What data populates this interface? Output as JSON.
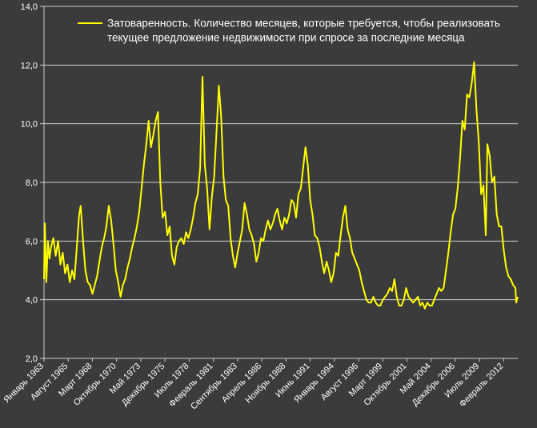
{
  "colors": {
    "background": "#3b3b3b",
    "line": "#ffff00",
    "grid": "#cfcfcf",
    "text": "#ffffff"
  },
  "chart_data": {
    "type": "line",
    "title": "",
    "xlabel": "",
    "ylabel": "",
    "ylim": [
      2,
      14
    ],
    "y_ticks": [
      "2,0",
      "4,0",
      "6,0",
      "8,0",
      "10,0",
      "12,0",
      "14,0"
    ],
    "x_range": [
      "1963-01",
      "2013-08"
    ],
    "x_tick_labels": [
      {
        "label": "Январь 1963",
        "date": "1963-01"
      },
      {
        "label": "Август 1965",
        "date": "1965-08"
      },
      {
        "label": "Март 1968",
        "date": "1968-03"
      },
      {
        "label": "Октябрь 1970",
        "date": "1970-10"
      },
      {
        "label": "Май 1973",
        "date": "1973-05"
      },
      {
        "label": "Декабрь 1975",
        "date": "1975-12"
      },
      {
        "label": "Июль 1978",
        "date": "1978-07"
      },
      {
        "label": "Февраль 1981",
        "date": "1981-02"
      },
      {
        "label": "Сентябрь 1983",
        "date": "1983-09"
      },
      {
        "label": "Апрель 1986",
        "date": "1986-04"
      },
      {
        "label": "Ноябрь 1988",
        "date": "1988-11"
      },
      {
        "label": "Июнь 1991",
        "date": "1991-06"
      },
      {
        "label": "Январь 1994",
        "date": "1994-01"
      },
      {
        "label": "Август 1996",
        "date": "1996-08"
      },
      {
        "label": "Март 1999",
        "date": "1999-03"
      },
      {
        "label": "Октябрь 2001",
        "date": "2001-10"
      },
      {
        "label": "Май 2004",
        "date": "2004-05"
      },
      {
        "label": "Декабрь 2006",
        "date": "2006-12"
      },
      {
        "label": "Июль 2009",
        "date": "2009-07"
      },
      {
        "label": "Февраль 2012",
        "date": "2012-02"
      }
    ],
    "grid": true,
    "legend": {
      "position": "top-right",
      "line1": "Затоваренность. Количество месяцев, которые требуется, чтобы реализовать",
      "line2": "текущее предложение недвижимости при спросе за последние месяца"
    },
    "series": [
      {
        "name": "Затоваренность. Количество месяцев, которые требуется, чтобы реализовать текущее предложение недвижимости при спросе за последние месяца",
        "points": [
          [
            "1963-01",
            4.7
          ],
          [
            "1963-02",
            6.6
          ],
          [
            "1963-04",
            4.6
          ],
          [
            "1963-06",
            6.0
          ],
          [
            "1963-08",
            5.4
          ],
          [
            "1963-10",
            5.8
          ],
          [
            "1964-01",
            6.1
          ],
          [
            "1964-04",
            5.5
          ],
          [
            "1964-07",
            6.0
          ],
          [
            "1964-10",
            5.2
          ],
          [
            "1965-01",
            5.6
          ],
          [
            "1965-04",
            4.9
          ],
          [
            "1965-07",
            5.2
          ],
          [
            "1965-10",
            4.6
          ],
          [
            "1966-01",
            5.0
          ],
          [
            "1966-04",
            4.7
          ],
          [
            "1966-07",
            5.8
          ],
          [
            "1966-10",
            6.9
          ],
          [
            "1966-12",
            7.2
          ],
          [
            "1967-03",
            6.0
          ],
          [
            "1967-06",
            5.0
          ],
          [
            "1967-09",
            4.6
          ],
          [
            "1967-12",
            4.5
          ],
          [
            "1968-03",
            4.2
          ],
          [
            "1968-06",
            4.5
          ],
          [
            "1968-09",
            4.8
          ],
          [
            "1968-12",
            5.3
          ],
          [
            "1969-03",
            5.8
          ],
          [
            "1969-06",
            6.1
          ],
          [
            "1969-09",
            6.5
          ],
          [
            "1969-12",
            7.2
          ],
          [
            "1970-03",
            6.7
          ],
          [
            "1970-06",
            5.9
          ],
          [
            "1970-09",
            5.0
          ],
          [
            "1970-12",
            4.6
          ],
          [
            "1971-03",
            4.1
          ],
          [
            "1971-06",
            4.5
          ],
          [
            "1971-09",
            4.7
          ],
          [
            "1971-12",
            5.1
          ],
          [
            "1972-03",
            5.4
          ],
          [
            "1972-06",
            5.8
          ],
          [
            "1972-09",
            6.1
          ],
          [
            "1972-12",
            6.5
          ],
          [
            "1973-03",
            7.0
          ],
          [
            "1973-06",
            7.8
          ],
          [
            "1973-09",
            8.6
          ],
          [
            "1973-12",
            9.3
          ],
          [
            "1974-03",
            10.1
          ],
          [
            "1974-06",
            9.2
          ],
          [
            "1974-09",
            9.6
          ],
          [
            "1974-12",
            10.1
          ],
          [
            "1975-03",
            10.4
          ],
          [
            "1975-06",
            8.0
          ],
          [
            "1975-09",
            6.8
          ],
          [
            "1975-12",
            7.0
          ],
          [
            "1976-03",
            6.2
          ],
          [
            "1976-06",
            6.5
          ],
          [
            "1976-09",
            5.5
          ],
          [
            "1976-12",
            5.2
          ],
          [
            "1977-03",
            5.8
          ],
          [
            "1977-06",
            6.0
          ],
          [
            "1977-09",
            6.1
          ],
          [
            "1977-12",
            5.9
          ],
          [
            "1978-03",
            6.3
          ],
          [
            "1978-06",
            6.1
          ],
          [
            "1978-09",
            6.4
          ],
          [
            "1978-12",
            6.8
          ],
          [
            "1979-03",
            7.3
          ],
          [
            "1979-06",
            7.6
          ],
          [
            "1979-09",
            8.5
          ],
          [
            "1979-12",
            11.6
          ],
          [
            "1980-03",
            8.6
          ],
          [
            "1980-06",
            7.8
          ],
          [
            "1980-09",
            6.4
          ],
          [
            "1980-12",
            7.5
          ],
          [
            "1981-03",
            8.2
          ],
          [
            "1981-06",
            9.7
          ],
          [
            "1981-09",
            11.3
          ],
          [
            "1981-12",
            10.2
          ],
          [
            "1982-03",
            8.2
          ],
          [
            "1982-06",
            7.4
          ],
          [
            "1982-09",
            7.2
          ],
          [
            "1982-12",
            6.1
          ],
          [
            "1983-03",
            5.5
          ],
          [
            "1983-06",
            5.1
          ],
          [
            "1983-09",
            5.6
          ],
          [
            "1983-12",
            6.0
          ],
          [
            "1984-03",
            6.4
          ],
          [
            "1984-06",
            7.3
          ],
          [
            "1984-09",
            6.9
          ],
          [
            "1984-12",
            6.4
          ],
          [
            "1985-03",
            6.2
          ],
          [
            "1985-06",
            5.9
          ],
          [
            "1985-09",
            5.3
          ],
          [
            "1985-12",
            5.6
          ],
          [
            "1986-03",
            6.1
          ],
          [
            "1986-06",
            6.0
          ],
          [
            "1986-09",
            6.4
          ],
          [
            "1986-12",
            6.7
          ],
          [
            "1987-03",
            6.4
          ],
          [
            "1987-06",
            6.6
          ],
          [
            "1987-09",
            6.9
          ],
          [
            "1987-12",
            7.1
          ],
          [
            "1988-03",
            6.7
          ],
          [
            "1988-06",
            6.4
          ],
          [
            "1988-09",
            6.8
          ],
          [
            "1988-12",
            6.6
          ],
          [
            "1989-03",
            6.9
          ],
          [
            "1989-06",
            7.4
          ],
          [
            "1989-09",
            7.3
          ],
          [
            "1989-12",
            6.8
          ],
          [
            "1990-03",
            7.6
          ],
          [
            "1990-06",
            7.8
          ],
          [
            "1990-09",
            8.5
          ],
          [
            "1990-12",
            9.2
          ],
          [
            "1991-03",
            8.6
          ],
          [
            "1991-06",
            7.4
          ],
          [
            "1991-09",
            6.9
          ],
          [
            "1991-12",
            6.2
          ],
          [
            "1992-03",
            6.1
          ],
          [
            "1992-06",
            5.8
          ],
          [
            "1992-09",
            5.3
          ],
          [
            "1992-12",
            4.9
          ],
          [
            "1993-03",
            5.3
          ],
          [
            "1993-06",
            5.0
          ],
          [
            "1993-09",
            4.6
          ],
          [
            "1993-12",
            4.9
          ],
          [
            "1994-03",
            5.6
          ],
          [
            "1994-06",
            5.5
          ],
          [
            "1994-09",
            6.2
          ],
          [
            "1994-12",
            6.8
          ],
          [
            "1995-03",
            7.2
          ],
          [
            "1995-06",
            6.4
          ],
          [
            "1995-09",
            6.1
          ],
          [
            "1995-12",
            5.6
          ],
          [
            "1996-03",
            5.4
          ],
          [
            "1996-06",
            5.2
          ],
          [
            "1996-09",
            5.0
          ],
          [
            "1996-12",
            4.6
          ],
          [
            "1997-03",
            4.3
          ],
          [
            "1997-06",
            4.0
          ],
          [
            "1997-09",
            3.9
          ],
          [
            "1997-12",
            3.9
          ],
          [
            "1998-03",
            4.1
          ],
          [
            "1998-06",
            3.9
          ],
          [
            "1998-09",
            3.8
          ],
          [
            "1998-12",
            3.8
          ],
          [
            "1999-03",
            4.0
          ],
          [
            "1999-06",
            4.1
          ],
          [
            "1999-09",
            4.2
          ],
          [
            "1999-12",
            4.4
          ],
          [
            "2000-03",
            4.3
          ],
          [
            "2000-06",
            4.7
          ],
          [
            "2000-09",
            4.1
          ],
          [
            "2000-12",
            3.8
          ],
          [
            "2001-03",
            3.8
          ],
          [
            "2001-06",
            4.0
          ],
          [
            "2001-09",
            4.4
          ],
          [
            "2001-12",
            4.1
          ],
          [
            "2002-03",
            4.0
          ],
          [
            "2002-06",
            3.9
          ],
          [
            "2002-09",
            4.0
          ],
          [
            "2002-12",
            4.1
          ],
          [
            "2003-03",
            3.8
          ],
          [
            "2003-06",
            3.9
          ],
          [
            "2003-09",
            3.7
          ],
          [
            "2003-12",
            3.9
          ],
          [
            "2004-03",
            3.8
          ],
          [
            "2004-06",
            3.8
          ],
          [
            "2004-09",
            4.0
          ],
          [
            "2004-12",
            4.2
          ],
          [
            "2005-03",
            4.4
          ],
          [
            "2005-06",
            4.3
          ],
          [
            "2005-09",
            4.4
          ],
          [
            "2005-12",
            5.0
          ],
          [
            "2006-03",
            5.6
          ],
          [
            "2006-06",
            6.3
          ],
          [
            "2006-09",
            6.9
          ],
          [
            "2006-12",
            7.1
          ],
          [
            "2007-03",
            7.8
          ],
          [
            "2007-06",
            8.8
          ],
          [
            "2007-09",
            10.1
          ],
          [
            "2007-12",
            9.8
          ],
          [
            "2008-03",
            11.0
          ],
          [
            "2008-06",
            10.9
          ],
          [
            "2008-09",
            11.4
          ],
          [
            "2008-12",
            12.1
          ],
          [
            "2009-03",
            10.5
          ],
          [
            "2009-06",
            9.4
          ],
          [
            "2009-09",
            7.6
          ],
          [
            "2009-12",
            7.9
          ],
          [
            "2010-03",
            6.2
          ],
          [
            "2010-05",
            9.3
          ],
          [
            "2010-08",
            8.9
          ],
          [
            "2010-11",
            8.0
          ],
          [
            "2011-02",
            8.2
          ],
          [
            "2011-05",
            6.9
          ],
          [
            "2011-08",
            6.5
          ],
          [
            "2011-11",
            6.5
          ],
          [
            "2012-02",
            5.7
          ],
          [
            "2012-05",
            5.1
          ],
          [
            "2012-08",
            4.8
          ],
          [
            "2012-11",
            4.7
          ],
          [
            "2013-02",
            4.5
          ],
          [
            "2013-05",
            4.4
          ],
          [
            "2013-06",
            3.9
          ],
          [
            "2013-08",
            4.1
          ]
        ]
      }
    ]
  }
}
